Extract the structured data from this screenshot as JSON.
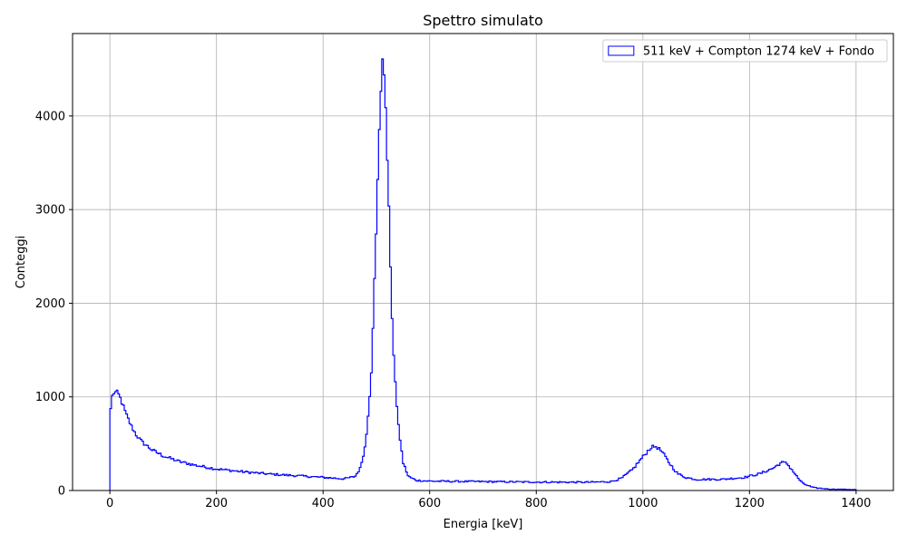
{
  "chart_data": {
    "type": "line",
    "drawstyle": "steps",
    "title": "Spettro simulato",
    "xlabel": "Energia [keV]",
    "ylabel": "Conteggi",
    "xlim": [
      -70,
      1470
    ],
    "ylim": [
      0,
      4880
    ],
    "xticks": [
      0,
      200,
      400,
      600,
      800,
      1000,
      1200,
      1400
    ],
    "yticks": [
      0,
      1000,
      2000,
      3000,
      4000
    ],
    "grid": true,
    "legend_position": "top-right",
    "series": [
      {
        "name": "511 keV + Compton 1274 keV + Fondo",
        "color": "#0000ff",
        "x_range": [
          0,
          1400
        ],
        "profile": [
          [
            0,
            0
          ],
          [
            1,
            850
          ],
          [
            4,
            1000
          ],
          [
            8,
            1050
          ],
          [
            15,
            1040
          ],
          [
            20,
            980
          ],
          [
            30,
            820
          ],
          [
            40,
            690
          ],
          [
            50,
            590
          ],
          [
            60,
            520
          ],
          [
            80,
            430
          ],
          [
            100,
            370
          ],
          [
            130,
            310
          ],
          [
            160,
            270
          ],
          [
            200,
            230
          ],
          [
            250,
            200
          ],
          [
            300,
            175
          ],
          [
            350,
            158
          ],
          [
            400,
            140
          ],
          [
            440,
            125
          ],
          [
            460,
            150
          ],
          [
            470,
            240
          ],
          [
            480,
            500
          ],
          [
            490,
            1200
          ],
          [
            500,
            2800
          ],
          [
            505,
            3800
          ],
          [
            511,
            4650
          ],
          [
            517,
            4200
          ],
          [
            522,
            3300
          ],
          [
            530,
            1700
          ],
          [
            540,
            750
          ],
          [
            550,
            300
          ],
          [
            560,
            150
          ],
          [
            575,
            108
          ],
          [
            600,
            100
          ],
          [
            700,
            95
          ],
          [
            800,
            90
          ],
          [
            900,
            88
          ],
          [
            940,
            95
          ],
          [
            960,
            130
          ],
          [
            980,
            220
          ],
          [
            1000,
            360
          ],
          [
            1015,
            460
          ],
          [
            1025,
            470
          ],
          [
            1035,
            420
          ],
          [
            1050,
            290
          ],
          [
            1065,
            180
          ],
          [
            1080,
            140
          ],
          [
            1100,
            118
          ],
          [
            1150,
            120
          ],
          [
            1190,
            140
          ],
          [
            1220,
            180
          ],
          [
            1245,
            240
          ],
          [
            1260,
            300
          ],
          [
            1270,
            290
          ],
          [
            1280,
            220
          ],
          [
            1290,
            140
          ],
          [
            1300,
            75
          ],
          [
            1320,
            30
          ],
          [
            1350,
            15
          ],
          [
            1400,
            10
          ]
        ]
      }
    ]
  }
}
